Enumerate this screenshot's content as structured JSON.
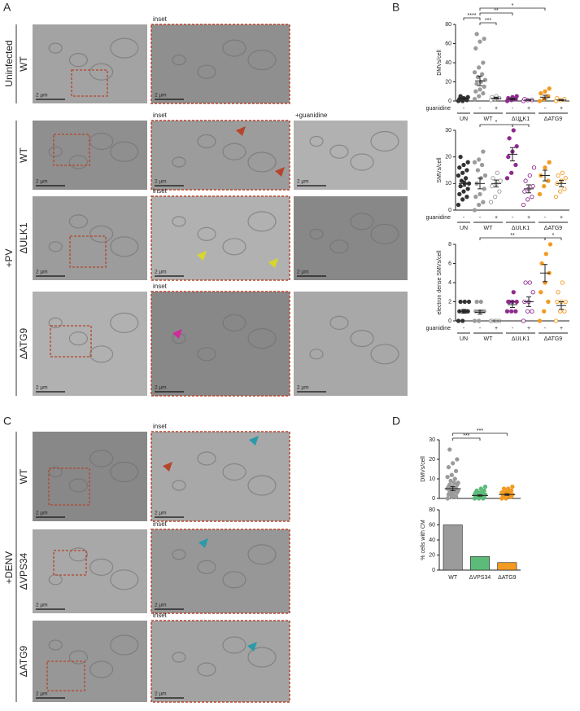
{
  "figure": {
    "panel_letters": [
      "A",
      "B",
      "C",
      "D"
    ],
    "conditions": [
      "Uninfected",
      "+PV",
      "+DENV"
    ],
    "row_labels": [
      {
        "text": "WT",
        "color": "#9b9b9b"
      },
      {
        "text": "WT",
        "color": "#9b9b9b"
      },
      {
        "text": "ΔULK1",
        "color": "#8e2c8e"
      },
      {
        "text": "ΔATG9",
        "color": "#f29a22"
      },
      {
        "text": "WT",
        "color": "#9b9b9b"
      },
      {
        "text": "ΔVPS34",
        "color": "#5dbb7a"
      },
      {
        "text": "ΔATG9",
        "color": "#f29a22"
      }
    ],
    "inset_label": "inset",
    "guanidine_label": "+guanidine",
    "scale_bar": "2 µm"
  },
  "chart_data": [
    {
      "type": "dotplot",
      "y_label": "DMVs/cell",
      "ylim": [
        0,
        80
      ],
      "yticks": [
        0,
        20,
        40,
        60,
        80
      ],
      "row_label": "guanidine",
      "series": [
        {
          "group": "UN",
          "condition": "-",
          "color": "#333333",
          "filled": true,
          "values": [
            0,
            0,
            1,
            2,
            3,
            4,
            5,
            2
          ],
          "mean": 2.5,
          "sem": 0.7
        },
        {
          "group": "WT",
          "condition": "-",
          "color": "#9b9b9b",
          "filled": true,
          "values": [
            2,
            5,
            8,
            10,
            12,
            15,
            18,
            20,
            22,
            25,
            28,
            30,
            35,
            40,
            55,
            62,
            65,
            70
          ],
          "mean": 21,
          "sem": 5
        },
        {
          "group": "WT",
          "condition": "+",
          "color": "#9b9b9b",
          "filled": false,
          "values": [
            1,
            2,
            3,
            4,
            5
          ],
          "mean": 3,
          "sem": 1
        },
        {
          "group": "ΔULK1",
          "condition": "-",
          "color": "#8e2c8e",
          "filled": true,
          "values": [
            0,
            1,
            2,
            3,
            4,
            5
          ],
          "mean": 2,
          "sem": 0.8
        },
        {
          "group": "ΔULK1",
          "condition": "+",
          "color": "#8e2c8e",
          "filled": false,
          "values": [
            0,
            1,
            1,
            2
          ],
          "mean": 1,
          "sem": 0.4
        },
        {
          "group": "ΔATG9",
          "condition": "-",
          "color": "#f29a22",
          "filled": true,
          "values": [
            0,
            2,
            5,
            8,
            10,
            13
          ],
          "mean": 4,
          "sem": 2
        },
        {
          "group": "ΔATG9",
          "condition": "+",
          "color": "#f29a22",
          "filled": false,
          "values": [
            0,
            1,
            2,
            3
          ],
          "mean": 1,
          "sem": 0.5
        }
      ],
      "significance": [
        "****",
        "***",
        "**",
        "*"
      ]
    },
    {
      "type": "dotplot",
      "y_label": "SMVs/cell",
      "ylim": [
        0,
        30
      ],
      "yticks": [
        0,
        10,
        20,
        30
      ],
      "row_label": "guanidine",
      "series": [
        {
          "group": "UN",
          "condition": "-",
          "color": "#333333",
          "filled": true,
          "values": [
            2,
            4,
            5,
            6,
            7,
            8,
            9,
            10,
            10,
            11,
            12,
            13,
            14,
            15,
            16,
            17,
            18,
            20
          ],
          "mean": 10,
          "sem": 1
        },
        {
          "group": "WT",
          "condition": "-",
          "color": "#9b9b9b",
          "filled": true,
          "values": [
            0,
            2,
            3,
            5,
            6,
            8,
            10,
            12,
            13,
            15,
            17,
            18,
            19,
            22
          ],
          "mean": 10,
          "sem": 2
        },
        {
          "group": "WT",
          "condition": "+",
          "color": "#9b9b9b",
          "filled": false,
          "values": [
            3,
            5,
            7,
            9,
            10,
            11,
            12,
            14
          ],
          "mean": 10,
          "sem": 1.3
        },
        {
          "group": "ΔULK1",
          "condition": "-",
          "color": "#8e2c8e",
          "filled": true,
          "values": [
            12,
            14,
            17,
            20,
            22,
            24,
            27,
            30
          ],
          "mean": 21,
          "sem": 2.5
        },
        {
          "group": "ΔULK1",
          "condition": "+",
          "color": "#8e2c8e",
          "filled": false,
          "values": [
            2,
            4,
            5,
            7,
            8,
            9,
            11,
            13,
            16
          ],
          "mean": 8,
          "sem": 1.5
        },
        {
          "group": "ΔATG9",
          "condition": "-",
          "color": "#f29a22",
          "filled": true,
          "values": [
            6,
            9,
            11,
            13,
            16,
            18
          ],
          "mean": 13,
          "sem": 2
        },
        {
          "group": "ΔATG9",
          "condition": "+",
          "color": "#f29a22",
          "filled": false,
          "values": [
            5,
            7,
            8,
            10,
            11,
            12,
            13,
            14
          ],
          "mean": 10,
          "sem": 1.2
        }
      ],
      "significance": [
        "*",
        "**"
      ]
    },
    {
      "type": "dotplot",
      "y_label": "electron dense SMVs/cell",
      "ylim": [
        0,
        8
      ],
      "yticks": [
        0,
        2,
        4,
        6,
        8
      ],
      "row_label": "guanidine",
      "series": [
        {
          "group": "UN",
          "condition": "-",
          "color": "#333333",
          "filled": true,
          "values": [
            0,
            0,
            1,
            1,
            1,
            1,
            2,
            2,
            2
          ],
          "mean": 1,
          "sem": 0.2
        },
        {
          "group": "WT",
          "condition": "-",
          "color": "#9b9b9b",
          "filled": true,
          "values": [
            0,
            0,
            1,
            1,
            1,
            1,
            2,
            2
          ],
          "mean": 0.9,
          "sem": 0.2
        },
        {
          "group": "WT",
          "condition": "+",
          "color": "#9b9b9b",
          "filled": false,
          "values": [
            0,
            0,
            0,
            0,
            0
          ],
          "mean": 0,
          "sem": 0
        },
        {
          "group": "ΔULK1",
          "condition": "-",
          "color": "#8e2c8e",
          "filled": true,
          "values": [
            1,
            1,
            1,
            2,
            2,
            2,
            2,
            3
          ],
          "mean": 1.7,
          "sem": 0.3
        },
        {
          "group": "ΔULK1",
          "condition": "+",
          "color": "#8e2c8e",
          "filled": false,
          "values": [
            0,
            1,
            1,
            2,
            2,
            3,
            4,
            4
          ],
          "mean": 2,
          "sem": 0.5
        },
        {
          "group": "ΔATG9",
          "condition": "-",
          "color": "#f29a22",
          "filled": true,
          "values": [
            0,
            1,
            2,
            3,
            4,
            5,
            6,
            7,
            8
          ],
          "mean": 5,
          "sem": 0.9
        },
        {
          "group": "ΔATG9",
          "condition": "+",
          "color": "#f29a22",
          "filled": false,
          "values": [
            0,
            1,
            1,
            2,
            2,
            2,
            3,
            4
          ],
          "mean": 1.6,
          "sem": 0.4
        }
      ],
      "significance": [
        "**",
        "*"
      ]
    },
    {
      "type": "dotplot",
      "y_label": "DMVs/cell",
      "ylim": [
        0,
        30
      ],
      "yticks": [
        0,
        10,
        20,
        30
      ],
      "series": [
        {
          "color": "#9b9b9b",
          "filled": true,
          "values": [
            0,
            1,
            1,
            2,
            2,
            3,
            3,
            3,
            4,
            4,
            4,
            5,
            5,
            5,
            6,
            6,
            7,
            7,
            8,
            8,
            9,
            10,
            11,
            12,
            14,
            16,
            18,
            20,
            25
          ],
          "mean": 5,
          "sem": 1
        },
        {
          "color": "#5dbb7a",
          "filled": true,
          "values": [
            0,
            0,
            0,
            1,
            1,
            1,
            1,
            1,
            2,
            2,
            2,
            2,
            2,
            3,
            3,
            3,
            4,
            4,
            5,
            6
          ],
          "mean": 1.5,
          "sem": 0.3
        },
        {
          "color": "#f29a22",
          "filled": true,
          "values": [
            0,
            0,
            1,
            1,
            1,
            1,
            2,
            2,
            2,
            2,
            2,
            3,
            3,
            3,
            3,
            4,
            4,
            5,
            5,
            6
          ],
          "mean": 2,
          "sem": 0.4
        }
      ],
      "significance": [
        "***",
        "***"
      ]
    },
    {
      "type": "bar",
      "y_label": "% cells with CM",
      "categories": [
        "WT",
        "ΔVPS34",
        "ΔATG9"
      ],
      "values": [
        60,
        18,
        10
      ],
      "colors": [
        "#9b9b9b",
        "#5dbb7a",
        "#f29a22"
      ],
      "ylim": [
        0,
        80
      ],
      "yticks": [
        0,
        20,
        40,
        60,
        80
      ]
    }
  ]
}
